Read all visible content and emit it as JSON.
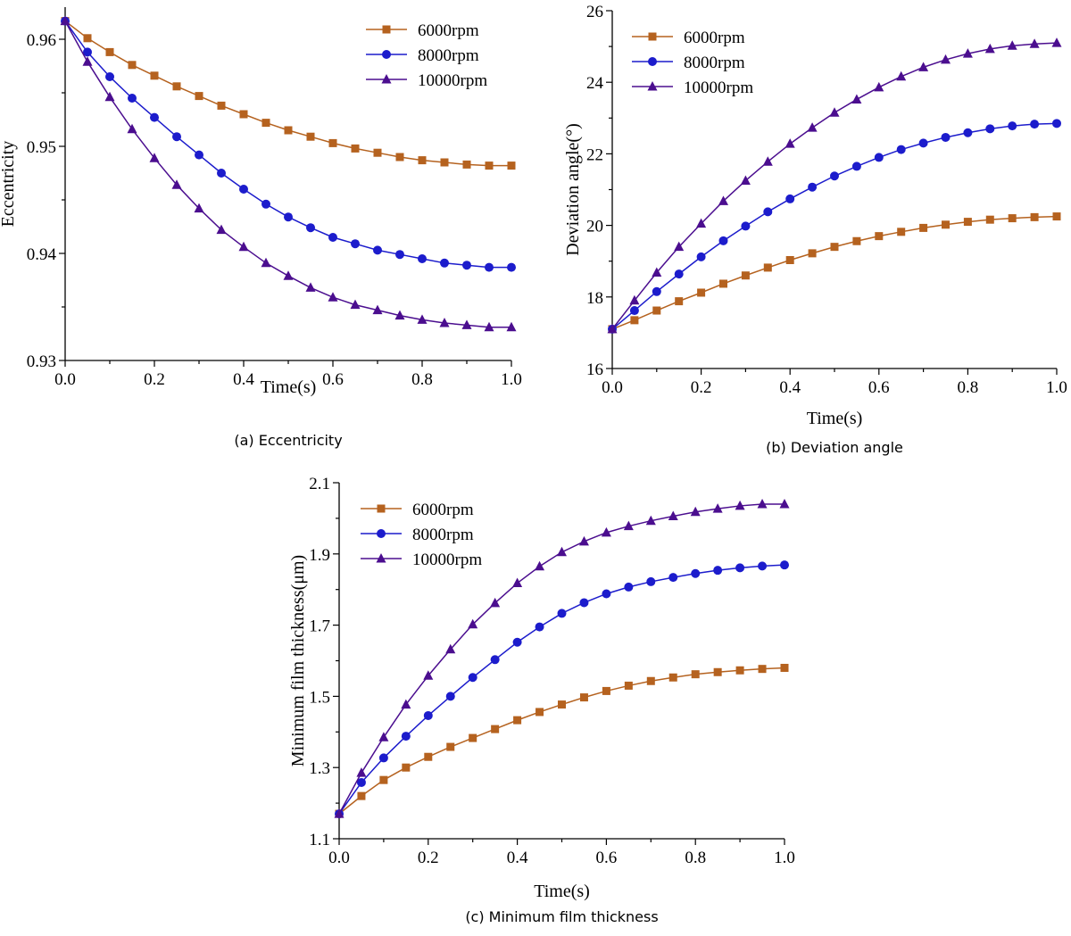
{
  "chart_data": [
    {
      "type": "line",
      "caption": "(a) Eccentricity",
      "xlabel": "Time(s)",
      "ylabel": "Eccentricity",
      "xlim": [
        0,
        1
      ],
      "ylim": [
        0.93,
        0.963
      ],
      "xticks": [
        0,
        0.2,
        0.4,
        0.6,
        0.8,
        1.0
      ],
      "xtick_labels": [
        "0.0",
        "0.2",
        "0.4",
        "0.6",
        "0.8",
        "1.0"
      ],
      "yticks": [
        0.93,
        0.94,
        0.95,
        0.96
      ],
      "ytick_labels": [
        "0.93",
        "0.94",
        "0.95",
        "0.96"
      ],
      "legend_position": "top-right",
      "x": [
        0,
        0.05,
        0.1,
        0.15,
        0.2,
        0.25,
        0.3,
        0.35,
        0.4,
        0.45,
        0.5,
        0.55,
        0.6,
        0.65,
        0.7,
        0.75,
        0.8,
        0.85,
        0.9,
        0.95,
        1.0
      ],
      "series": [
        {
          "name": "6000rpm",
          "color": "#b5621f",
          "marker": "square",
          "values": [
            0.9617,
            0.9601,
            0.9588,
            0.9576,
            0.9566,
            0.9556,
            0.9547,
            0.9538,
            0.953,
            0.9522,
            0.9515,
            0.9509,
            0.9503,
            0.9498,
            0.9494,
            0.949,
            0.9487,
            0.9485,
            0.9483,
            0.9482,
            0.9482
          ]
        },
        {
          "name": "8000rpm",
          "color": "#1c1ccc",
          "marker": "circle",
          "values": [
            0.9617,
            0.9588,
            0.9565,
            0.9545,
            0.9527,
            0.9509,
            0.9492,
            0.9475,
            0.946,
            0.9446,
            0.9434,
            0.9424,
            0.9415,
            0.9409,
            0.9403,
            0.9399,
            0.9395,
            0.9391,
            0.9389,
            0.9387,
            0.9387
          ]
        },
        {
          "name": "10000rpm",
          "color": "#4b0e8f",
          "marker": "triangle",
          "values": [
            0.9617,
            0.9579,
            0.9546,
            0.9516,
            0.9489,
            0.9464,
            0.9442,
            0.9422,
            0.9406,
            0.9391,
            0.9379,
            0.9368,
            0.9359,
            0.9352,
            0.9347,
            0.9342,
            0.9338,
            0.9335,
            0.9333,
            0.9331,
            0.9331
          ]
        }
      ]
    },
    {
      "type": "line",
      "caption": "(b) Deviation angle",
      "xlabel": "Time(s)",
      "ylabel": "Deviation angle(°)",
      "xlim": [
        0,
        1
      ],
      "ylim": [
        16,
        26
      ],
      "xticks": [
        0,
        0.2,
        0.4,
        0.6,
        0.8,
        1.0
      ],
      "xtick_labels": [
        "0.0",
        "0.2",
        "0.4",
        "0.6",
        "0.8",
        "1.0"
      ],
      "yticks": [
        16,
        18,
        20,
        22,
        24,
        26
      ],
      "ytick_labels": [
        "16",
        "18",
        "20",
        "22",
        "24",
        "26"
      ],
      "legend_position": "top-left",
      "x": [
        0,
        0.05,
        0.1,
        0.15,
        0.2,
        0.25,
        0.3,
        0.35,
        0.4,
        0.45,
        0.5,
        0.55,
        0.6,
        0.65,
        0.7,
        0.75,
        0.8,
        0.85,
        0.9,
        0.95,
        1.0
      ],
      "series": [
        {
          "name": "6000rpm",
          "color": "#b5621f",
          "marker": "square",
          "values": [
            17.1,
            17.35,
            17.62,
            17.88,
            18.12,
            18.37,
            18.6,
            18.82,
            19.03,
            19.22,
            19.4,
            19.56,
            19.7,
            19.82,
            19.93,
            20.02,
            20.1,
            20.16,
            20.2,
            20.23,
            20.25
          ]
        },
        {
          "name": "8000rpm",
          "color": "#1c1ccc",
          "marker": "circle",
          "values": [
            17.1,
            17.62,
            18.15,
            18.64,
            19.12,
            19.57,
            19.98,
            20.38,
            20.74,
            21.07,
            21.38,
            21.65,
            21.9,
            22.12,
            22.3,
            22.46,
            22.59,
            22.7,
            22.78,
            22.83,
            22.85
          ]
        },
        {
          "name": "10000rpm",
          "color": "#4b0e8f",
          "marker": "triangle",
          "values": [
            17.1,
            17.9,
            18.68,
            19.4,
            20.05,
            20.68,
            21.25,
            21.78,
            22.28,
            22.73,
            23.15,
            23.52,
            23.86,
            24.16,
            24.42,
            24.63,
            24.8,
            24.93,
            25.02,
            25.07,
            25.1
          ]
        }
      ]
    },
    {
      "type": "line",
      "caption": "(c) Minimum film thickness",
      "xlabel": "Time(s)",
      "ylabel": "Minimum film thickness(μm)",
      "xlim": [
        0,
        1
      ],
      "ylim": [
        1.1,
        2.1
      ],
      "xticks": [
        0,
        0.2,
        0.4,
        0.6,
        0.8,
        1.0
      ],
      "xtick_labels": [
        "0.0",
        "0.2",
        "0.4",
        "0.6",
        "0.8",
        "1.0"
      ],
      "yticks": [
        1.1,
        1.3,
        1.5,
        1.7,
        1.9,
        2.1
      ],
      "ytick_labels": [
        "1.1",
        "1.3",
        "1.5",
        "1.7",
        "1.9",
        "2.1"
      ],
      "legend_position": "top-left",
      "x": [
        0,
        0.05,
        0.1,
        0.15,
        0.2,
        0.25,
        0.3,
        0.35,
        0.4,
        0.45,
        0.5,
        0.55,
        0.6,
        0.65,
        0.7,
        0.75,
        0.8,
        0.85,
        0.9,
        0.95,
        1.0
      ],
      "series": [
        {
          "name": "6000rpm",
          "color": "#b5621f",
          "marker": "square",
          "values": [
            1.17,
            1.22,
            1.265,
            1.3,
            1.33,
            1.358,
            1.383,
            1.408,
            1.433,
            1.456,
            1.477,
            1.497,
            1.515,
            1.53,
            1.543,
            1.553,
            1.562,
            1.568,
            1.573,
            1.577,
            1.58
          ]
        },
        {
          "name": "8000rpm",
          "color": "#1c1ccc",
          "marker": "circle",
          "values": [
            1.17,
            1.258,
            1.327,
            1.388,
            1.446,
            1.5,
            1.553,
            1.603,
            1.652,
            1.695,
            1.733,
            1.763,
            1.788,
            1.807,
            1.822,
            1.834,
            1.845,
            1.854,
            1.861,
            1.866,
            1.869
          ]
        },
        {
          "name": "10000rpm",
          "color": "#4b0e8f",
          "marker": "triangle",
          "values": [
            1.17,
            1.285,
            1.385,
            1.477,
            1.558,
            1.632,
            1.702,
            1.762,
            1.818,
            1.865,
            1.905,
            1.935,
            1.96,
            1.978,
            1.993,
            2.006,
            2.018,
            2.027,
            2.035,
            2.04,
            2.04
          ]
        }
      ]
    }
  ]
}
